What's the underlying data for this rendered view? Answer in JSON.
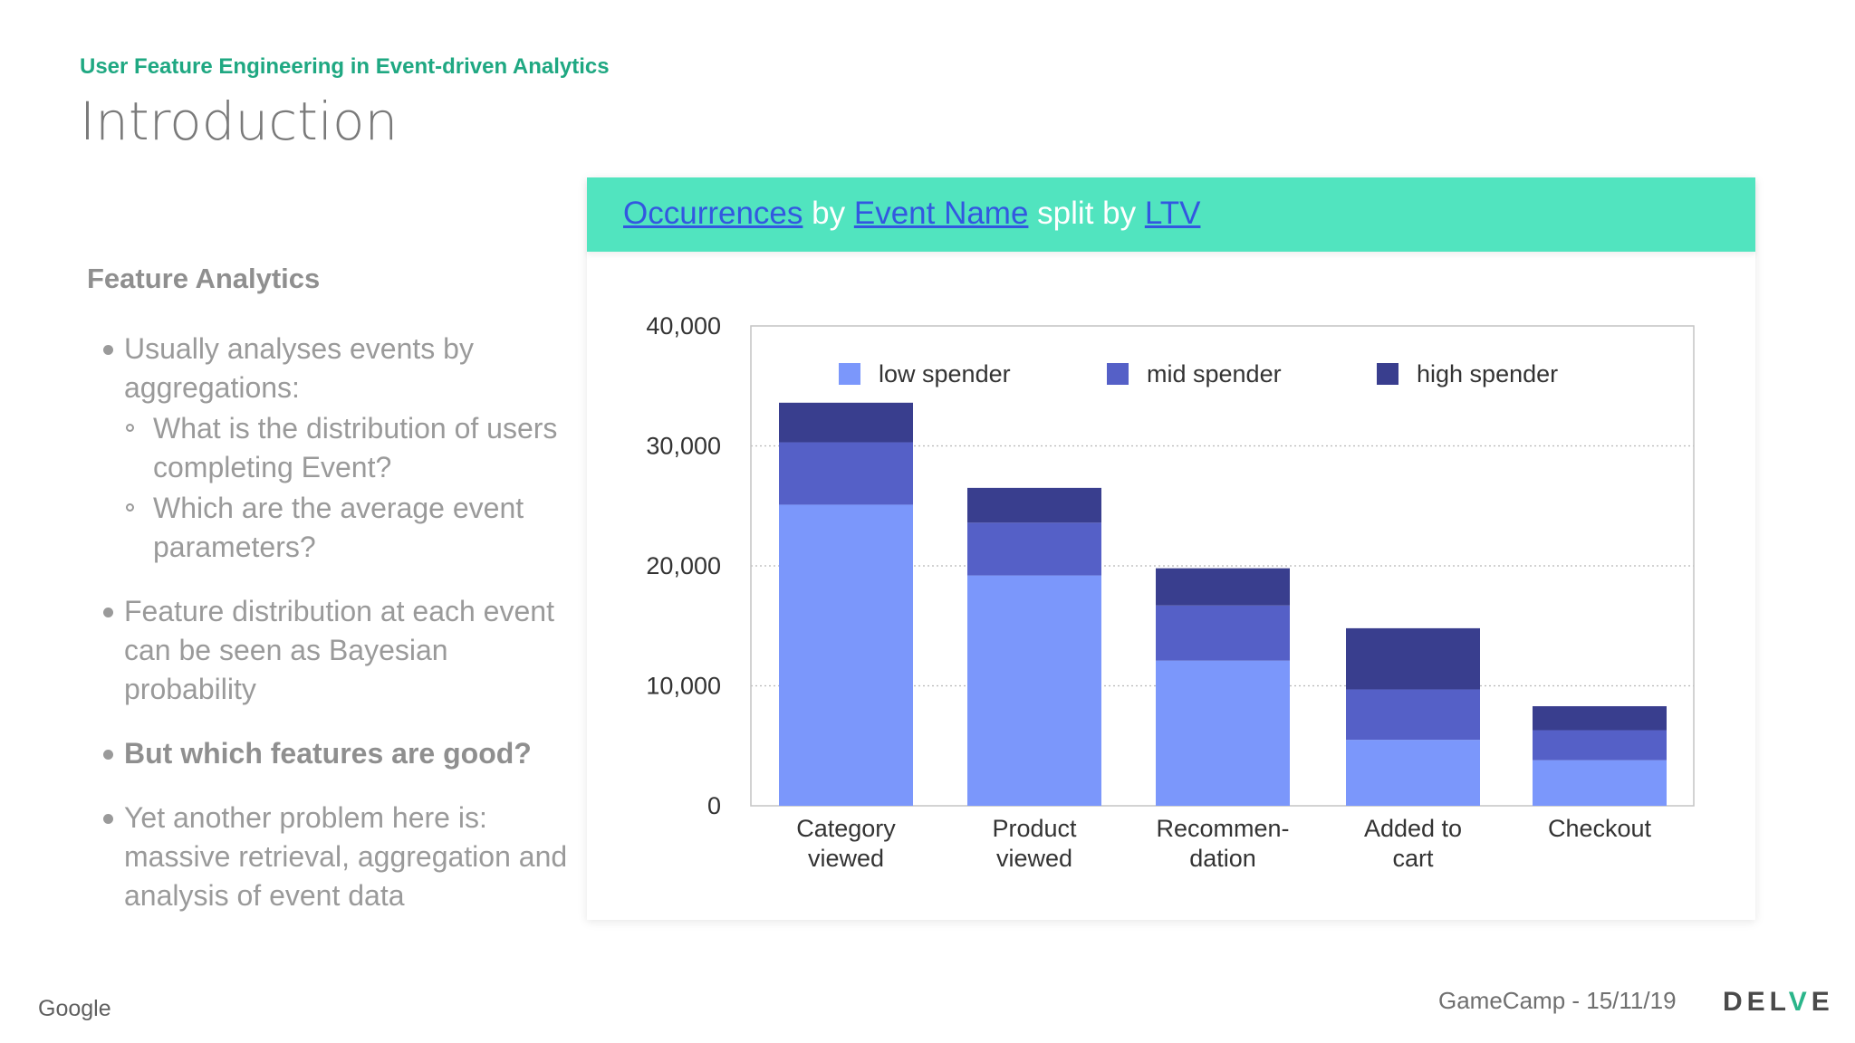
{
  "slide": {
    "subtitle": "User Feature Engineering in Event-driven Analytics",
    "title": "Introduction"
  },
  "left": {
    "heading": "Feature Analytics",
    "b1": "Usually analyses events by aggregations:",
    "b1_sub1": "What is the distribution of users completing Event?",
    "b1_sub2": "Which are the average event parameters?",
    "b2": "Feature distribution at each event can be seen as Bayesian probability",
    "b3": "But which features are good?",
    "b4": "Yet another problem here is: massive retrieval, aggregation and analysis of event data"
  },
  "query": {
    "metric": "Occurrences",
    "by": "by",
    "dimension": "Event Name",
    "split_by": "split by",
    "split": "LTV"
  },
  "footer": {
    "logo": "Google",
    "date": "GameCamp - 15/11/19",
    "brand_a": "DEL",
    "brand_v": "V",
    "brand_b": "E"
  },
  "colors": {
    "low": "#7b97fb",
    "mid": "#5560c7",
    "high": "#393e8e",
    "accent": "#51e4bf",
    "link": "#3357e0"
  },
  "chart_data": {
    "type": "bar",
    "stacked": true,
    "categories": [
      [
        "Category",
        "viewed"
      ],
      [
        "Product",
        "viewed"
      ],
      [
        "Recommen-",
        "dation"
      ],
      [
        "Added to",
        "cart"
      ],
      [
        "Checkout"
      ]
    ],
    "series": [
      {
        "name": "low spender",
        "values": [
          25100,
          19200,
          12100,
          5500,
          3800
        ]
      },
      {
        "name": "mid spender",
        "values": [
          5200,
          4400,
          4600,
          4200,
          2500
        ]
      },
      {
        "name": "high spender",
        "values": [
          3300,
          2900,
          3100,
          5100,
          2000
        ]
      }
    ],
    "y_ticks": [
      "0",
      "10,000",
      "20,000",
      "30,000",
      "40,000"
    ],
    "ylim": [
      0,
      40000
    ],
    "legend_position": "top",
    "grid": true,
    "title": "Occurrences by Event Name split by LTV"
  }
}
